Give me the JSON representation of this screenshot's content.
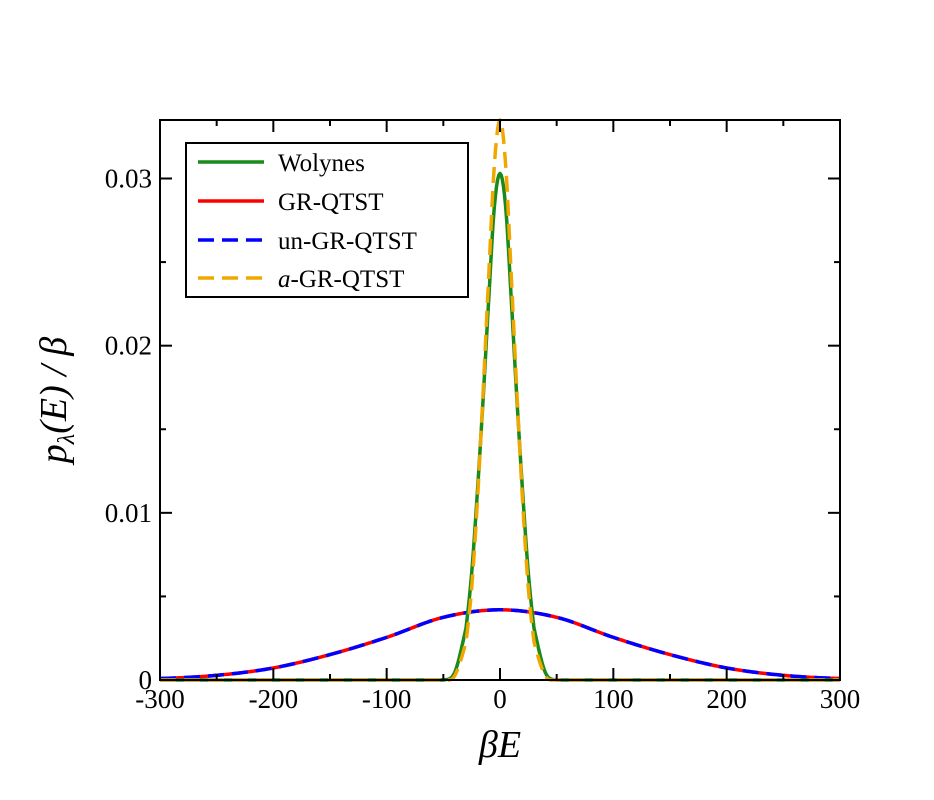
{
  "chart_data": {
    "type": "line",
    "title": "",
    "xlabel": "βE",
    "ylabel": "pλ(E) / β",
    "xlim": [
      -300,
      300
    ],
    "ylim": [
      0,
      0.0335
    ],
    "x_ticks": [
      -300,
      -200,
      -100,
      0,
      100,
      200,
      300
    ],
    "x_tick_labels": [
      "-300",
      "-200",
      "-100",
      "0",
      "100",
      "200",
      "300"
    ],
    "y_ticks": [
      0,
      0.01,
      0.02,
      0.03
    ],
    "y_tick_labels": [
      "0",
      "0.01",
      "0.02",
      "0.03"
    ],
    "grid": false,
    "legend_position": "top-left",
    "series": [
      {
        "name": "Wolynes",
        "legend_label": "Wolynes",
        "color": "#1a8a1a",
        "dash": "solid",
        "x": [
          -50,
          -40,
          -30,
          -25,
          -20,
          -15,
          -10,
          -5,
          0,
          5,
          10,
          15,
          20,
          25,
          30,
          40,
          50
        ],
        "y": [
          0.0,
          0.00045,
          0.0031,
          0.0064,
          0.0112,
          0.0167,
          0.0227,
          0.0283,
          0.0303,
          0.0283,
          0.0227,
          0.0167,
          0.0112,
          0.0064,
          0.0031,
          0.00045,
          0.0
        ]
      },
      {
        "name": "GR-QTST",
        "legend_label": "GR-QTST",
        "color": "#ff0000",
        "dash": "solid",
        "x": [
          -300,
          -250,
          -200,
          -150,
          -100,
          -50,
          0,
          50,
          100,
          150,
          200,
          250,
          300
        ],
        "y": [
          9e-05,
          0.00028,
          0.00072,
          0.00152,
          0.00255,
          0.00375,
          0.0042,
          0.00375,
          0.00255,
          0.00152,
          0.00072,
          0.00028,
          9e-05
        ]
      },
      {
        "name": "un-GR-QTST",
        "legend_label": "un-GR-QTST",
        "color": "#0000ff",
        "dash": "dashed",
        "x": [
          -300,
          -250,
          -200,
          -150,
          -100,
          -50,
          0,
          50,
          100,
          150,
          200,
          250,
          300
        ],
        "y": [
          9e-05,
          0.00028,
          0.00072,
          0.00152,
          0.00255,
          0.00375,
          0.0042,
          0.00375,
          0.00255,
          0.00152,
          0.00072,
          0.00028,
          9e-05
        ]
      },
      {
        "name": "a-GR-QTST",
        "legend_label_italic": "a",
        "legend_label_rest": "-GR-QTST",
        "color": "#f0a800",
        "dash": "dashed",
        "x": [
          -50,
          -40,
          -30,
          -25,
          -20,
          -15,
          -10,
          -5,
          0,
          5,
          10,
          15,
          20,
          25,
          30,
          40,
          50
        ],
        "y": [
          0.0,
          0.00025,
          0.0023,
          0.0055,
          0.0106,
          0.0171,
          0.0241,
          0.0308,
          0.0335,
          0.0308,
          0.0241,
          0.0171,
          0.0106,
          0.0055,
          0.0023,
          0.00025,
          0.0
        ]
      }
    ]
  }
}
